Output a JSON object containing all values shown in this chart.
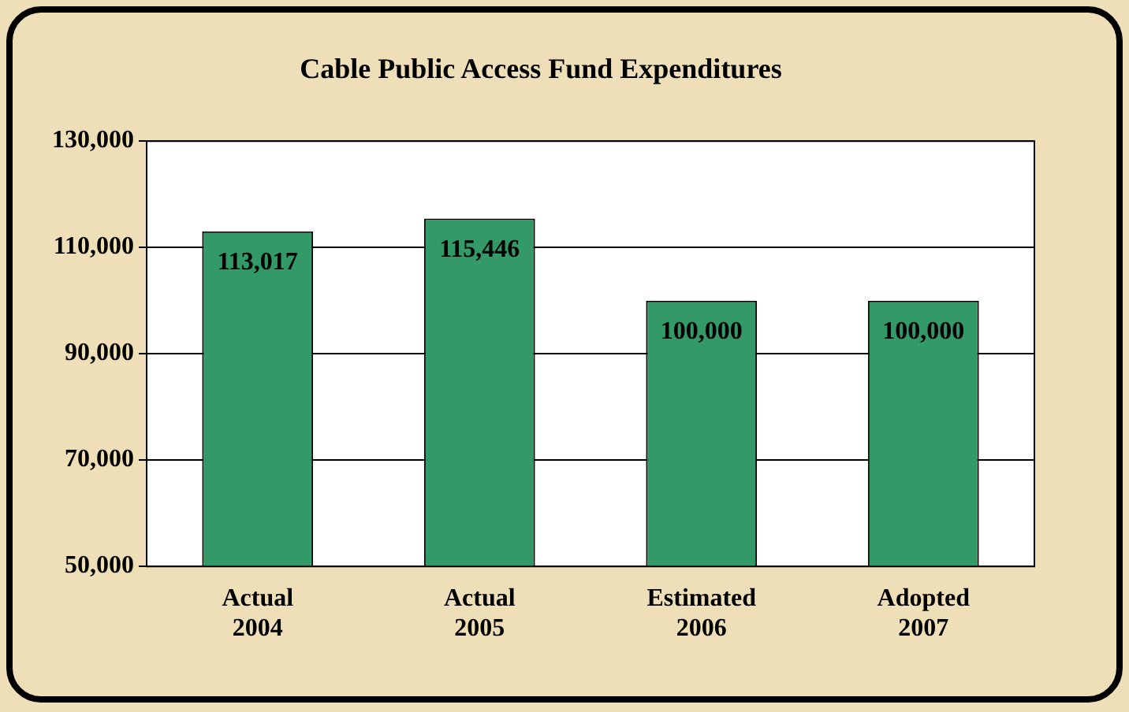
{
  "chart_data": {
    "type": "bar",
    "title": "Cable Public Access Fund Expenditures",
    "categories": [
      "Actual\n2004",
      "Actual\n2005",
      "Estimated\n2006",
      "Adopted\n2007"
    ],
    "values": [
      113017,
      115446,
      100000,
      100000
    ],
    "color": "#339966",
    "value_labels": [
      "113,017",
      "115,446",
      "100,000",
      "100,000"
    ],
    "ylim": [
      50000,
      130000
    ],
    "yticks": [
      {
        "value": 50000,
        "label": "50,000"
      },
      {
        "value": 70000,
        "label": "70,000"
      },
      {
        "value": 90000,
        "label": "90,000"
      },
      {
        "value": 110000,
        "label": "110,000"
      },
      {
        "value": 130000,
        "label": "130,000"
      }
    ],
    "grid": "y"
  }
}
